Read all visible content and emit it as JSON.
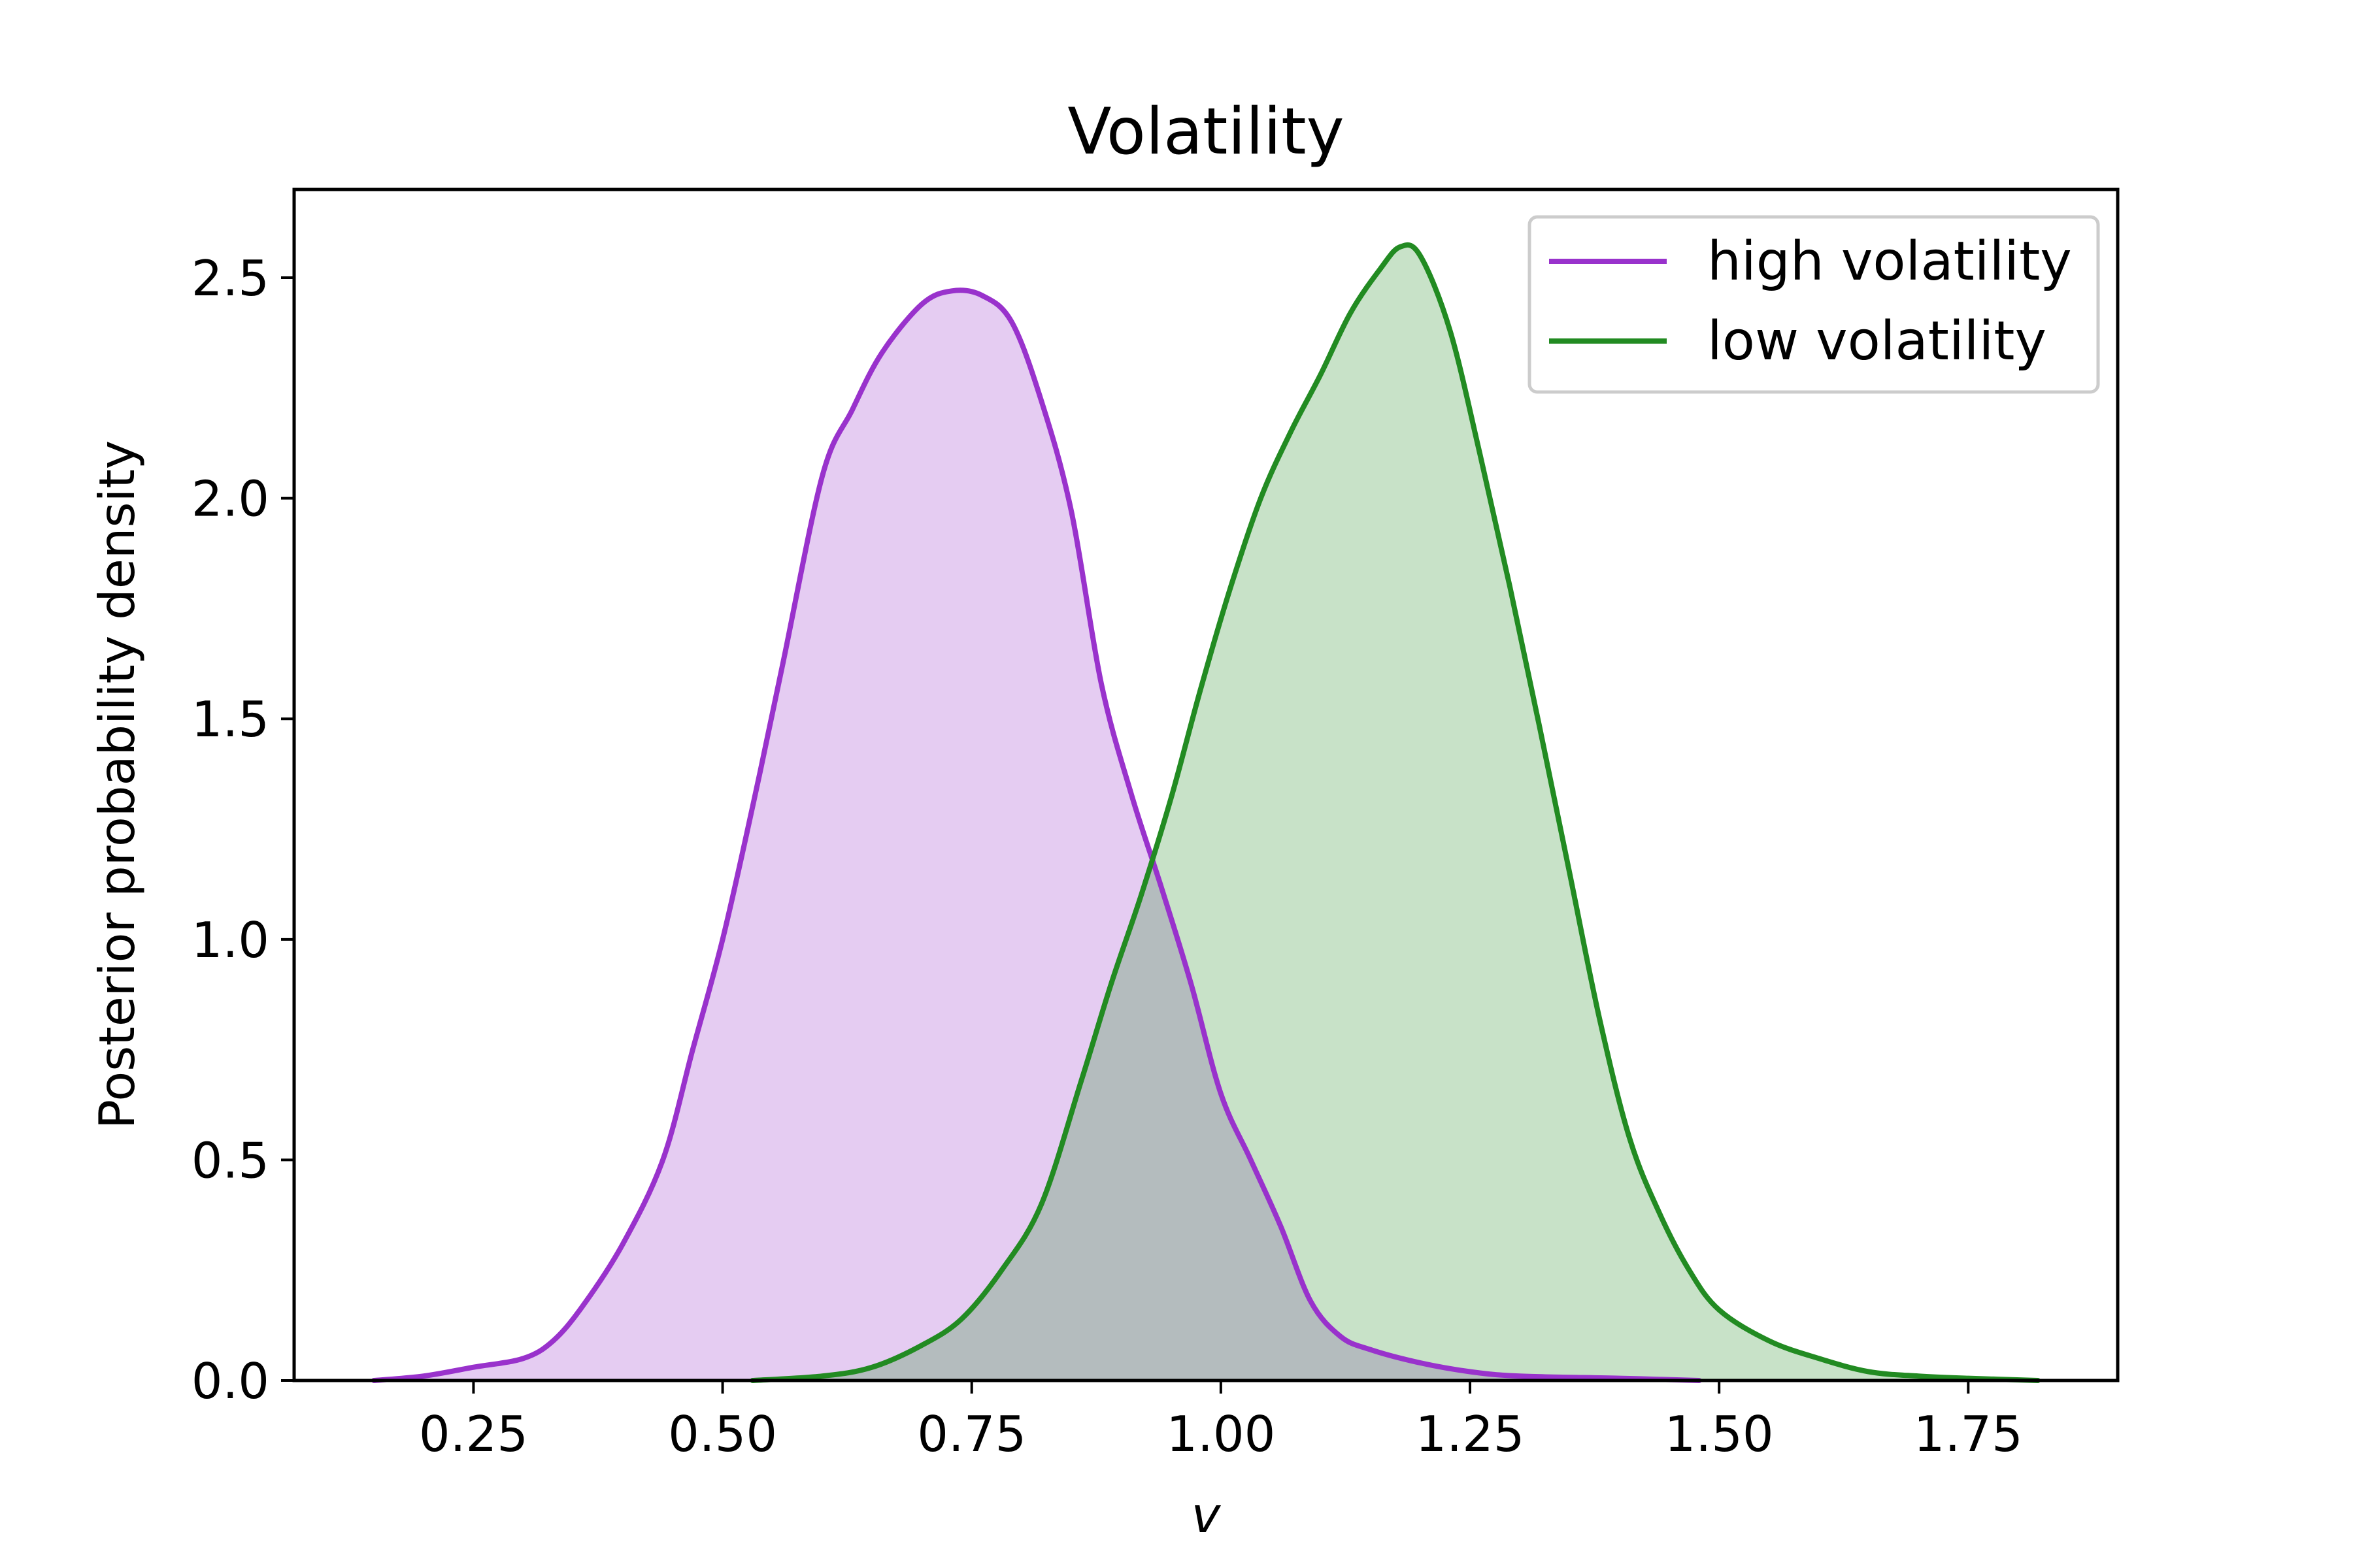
{
  "chart_data": {
    "type": "area",
    "title": "Volatility",
    "xlabel": "v",
    "ylabel": "Posterior probability density",
    "xlim": [
      0.07,
      1.9
    ],
    "ylim": [
      0,
      2.7
    ],
    "xticks": [
      0.25,
      0.5,
      0.75,
      1.0,
      1.25,
      1.5,
      1.75
    ],
    "xtick_labels": [
      "0.25",
      "0.50",
      "0.75",
      "1.00",
      "1.25",
      "1.50",
      "1.75"
    ],
    "yticks": [
      0,
      0.5,
      1.0,
      1.5,
      2.0,
      2.5
    ],
    "ytick_labels": [
      "0.0",
      "0.5",
      "1.0",
      "1.5",
      "2.0",
      "2.5"
    ],
    "grid": false,
    "legend_position": "upper right",
    "series": [
      {
        "name": "high volatility",
        "color": "#9932CC",
        "fill": "#E4CBF1",
        "x": [
          0.15,
          0.2,
          0.25,
          0.3,
          0.33,
          0.36,
          0.4,
          0.44,
          0.47,
          0.5,
          0.53,
          0.56,
          0.6,
          0.63,
          0.66,
          0.7,
          0.73,
          0.76,
          0.79,
          0.82,
          0.85,
          0.88,
          0.91,
          0.94,
          0.97,
          1.0,
          1.03,
          1.06,
          1.09,
          1.12,
          1.15,
          1.2,
          1.25,
          1.3,
          1.4,
          1.48
        ],
        "y": [
          0.0,
          0.01,
          0.03,
          0.05,
          0.09,
          0.17,
          0.31,
          0.5,
          0.75,
          1.0,
          1.3,
          1.62,
          2.05,
          2.2,
          2.33,
          2.44,
          2.47,
          2.46,
          2.4,
          2.22,
          1.97,
          1.58,
          1.33,
          1.12,
          0.9,
          0.65,
          0.5,
          0.35,
          0.18,
          0.1,
          0.07,
          0.04,
          0.02,
          0.01,
          0.005,
          0.0
        ]
      },
      {
        "name": "low volatility",
        "color": "#228B22",
        "fill": "#C6E1C6",
        "x": [
          0.53,
          0.6,
          0.65,
          0.7,
          0.74,
          0.78,
          0.82,
          0.86,
          0.89,
          0.92,
          0.95,
          0.98,
          1.01,
          1.04,
          1.07,
          1.1,
          1.13,
          1.16,
          1.18,
          1.2,
          1.23,
          1.26,
          1.29,
          1.32,
          1.35,
          1.38,
          1.41,
          1.44,
          1.47,
          1.5,
          1.55,
          1.6,
          1.65,
          1.7,
          1.75,
          1.82
        ],
        "y": [
          0.0,
          0.01,
          0.03,
          0.08,
          0.14,
          0.25,
          0.4,
          0.68,
          0.9,
          1.1,
          1.32,
          1.57,
          1.8,
          2.0,
          2.15,
          2.28,
          2.42,
          2.52,
          2.57,
          2.55,
          2.38,
          2.1,
          1.8,
          1.48,
          1.15,
          0.82,
          0.55,
          0.38,
          0.25,
          0.16,
          0.09,
          0.05,
          0.02,
          0.01,
          0.005,
          0.0
        ]
      }
    ]
  }
}
